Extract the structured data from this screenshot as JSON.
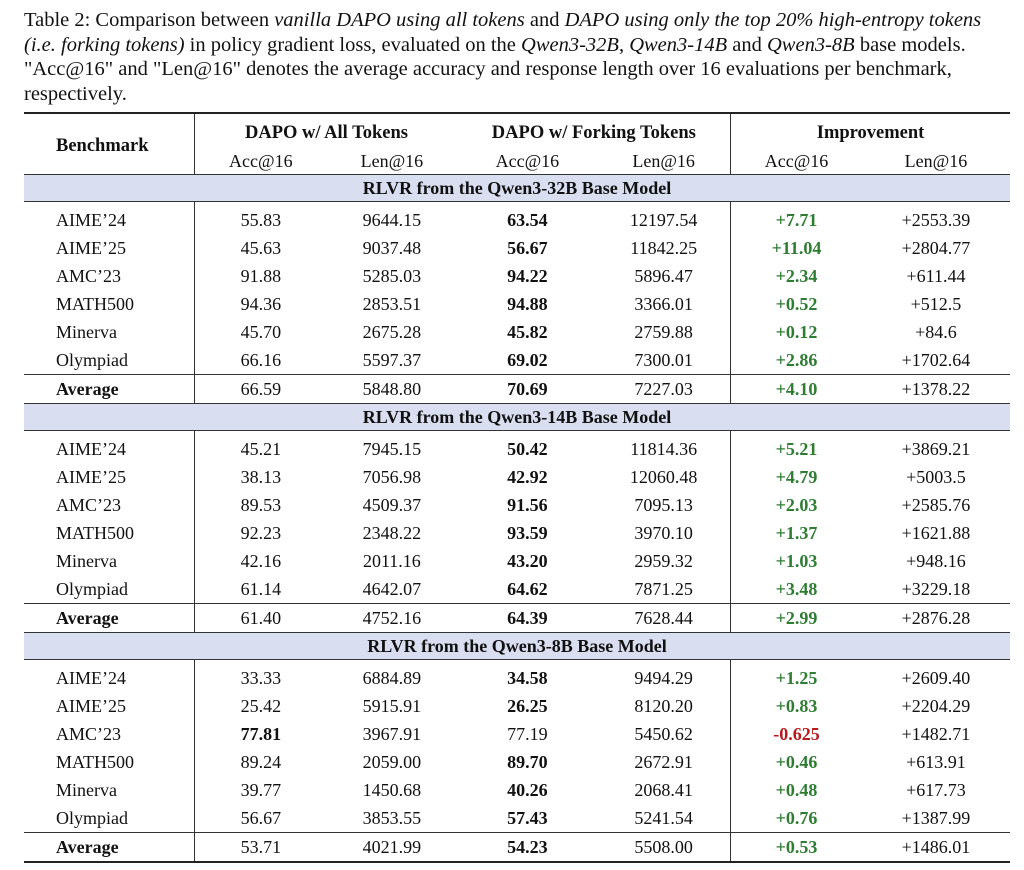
{
  "caption": {
    "p1": "Table 2: Comparison between ",
    "i1": "vanilla DAPO using all tokens",
    "p2": " and ",
    "i2": "DAPO using only the top 20% high-entropy tokens (i.e. forking tokens)",
    "p3": " in policy gradient loss, evaluated on the ",
    "i3": "Qwen3-32B",
    "p4": ", ",
    "i4": "Qwen3-14B",
    "p5": " and ",
    "i5": "Qwen3-8B",
    "p6": " base models. \"Acc@16\" and \"Len@16\" denotes the average accuracy and response length over 16 evaluations per benchmark, respectively."
  },
  "header": {
    "benchmark": "Benchmark",
    "group_all": "DAPO w/ All Tokens",
    "group_fork": "DAPO w/ Forking Tokens",
    "group_imp": "Improvement",
    "acc": "Acc@16",
    "len": "Len@16"
  },
  "sections": [
    {
      "title": "RLVR from the Qwen3-32B Base Model",
      "rows": [
        {
          "name": "AIME’24",
          "all_acc": "55.83",
          "all_len": "9644.15",
          "fork_acc": "63.54",
          "fork_len": "12197.54",
          "imp_acc": "+7.71",
          "imp_len": "+2553.39"
        },
        {
          "name": "AIME’25",
          "all_acc": "45.63",
          "all_len": "9037.48",
          "fork_acc": "56.67",
          "fork_len": "11842.25",
          "imp_acc": "+11.04",
          "imp_len": "+2804.77"
        },
        {
          "name": "AMC’23",
          "all_acc": "91.88",
          "all_len": "5285.03",
          "fork_acc": "94.22",
          "fork_len": "5896.47",
          "imp_acc": "+2.34",
          "imp_len": "+611.44"
        },
        {
          "name": "MATH500",
          "all_acc": "94.36",
          "all_len": "2853.51",
          "fork_acc": "94.88",
          "fork_len": "3366.01",
          "imp_acc": "+0.52",
          "imp_len": "+512.5"
        },
        {
          "name": "Minerva",
          "all_acc": "45.70",
          "all_len": "2675.28",
          "fork_acc": "45.82",
          "fork_len": "2759.88",
          "imp_acc": "+0.12",
          "imp_len": "+84.6"
        },
        {
          "name": "Olympiad",
          "all_acc": "66.16",
          "all_len": "5597.37",
          "fork_acc": "69.02",
          "fork_len": "7300.01",
          "imp_acc": "+2.86",
          "imp_len": "+1702.64"
        }
      ],
      "average": {
        "name": "Average",
        "all_acc": "66.59",
        "all_len": "5848.80",
        "fork_acc": "70.69",
        "fork_len": "7227.03",
        "imp_acc": "+4.10",
        "imp_len": "+1378.22"
      }
    },
    {
      "title": "RLVR from the Qwen3-14B Base Model",
      "rows": [
        {
          "name": "AIME’24",
          "all_acc": "45.21",
          "all_len": "7945.15",
          "fork_acc": "50.42",
          "fork_len": "11814.36",
          "imp_acc": "+5.21",
          "imp_len": "+3869.21"
        },
        {
          "name": "AIME’25",
          "all_acc": "38.13",
          "all_len": "7056.98",
          "fork_acc": "42.92",
          "fork_len": "12060.48",
          "imp_acc": "+4.79",
          "imp_len": "+5003.5"
        },
        {
          "name": "AMC’23",
          "all_acc": "89.53",
          "all_len": "4509.37",
          "fork_acc": "91.56",
          "fork_len": "7095.13",
          "imp_acc": "+2.03",
          "imp_len": "+2585.76"
        },
        {
          "name": "MATH500",
          "all_acc": "92.23",
          "all_len": "2348.22",
          "fork_acc": "93.59",
          "fork_len": "3970.10",
          "imp_acc": "+1.37",
          "imp_len": "+1621.88"
        },
        {
          "name": "Minerva",
          "all_acc": "42.16",
          "all_len": "2011.16",
          "fork_acc": "43.20",
          "fork_len": "2959.32",
          "imp_acc": "+1.03",
          "imp_len": "+948.16"
        },
        {
          "name": "Olympiad",
          "all_acc": "61.14",
          "all_len": "4642.07",
          "fork_acc": "64.62",
          "fork_len": "7871.25",
          "imp_acc": "+3.48",
          "imp_len": "+3229.18"
        }
      ],
      "average": {
        "name": "Average",
        "all_acc": "61.40",
        "all_len": "4752.16",
        "fork_acc": "64.39",
        "fork_len": "7628.44",
        "imp_acc": "+2.99",
        "imp_len": "+2876.28"
      }
    },
    {
      "title": "RLVR from the Qwen3-8B Base Model",
      "rows": [
        {
          "name": "AIME’24",
          "all_acc": "33.33",
          "all_len": "6884.89",
          "fork_acc": "34.58",
          "fork_len": "9494.29",
          "imp_acc": "+1.25",
          "imp_len": "+2609.40"
        },
        {
          "name": "AIME’25",
          "all_acc": "25.42",
          "all_len": "5915.91",
          "fork_acc": "26.25",
          "fork_len": "8120.20",
          "imp_acc": "+0.83",
          "imp_len": "+2204.29"
        },
        {
          "name": "AMC’23",
          "all_acc": "77.81",
          "all_len": "3967.91",
          "fork_acc": "77.19",
          "fork_len": "5450.62",
          "imp_acc": "-0.625",
          "imp_len": "+1482.71",
          "bold_all": true
        },
        {
          "name": "MATH500",
          "all_acc": "89.24",
          "all_len": "2059.00",
          "fork_acc": "89.70",
          "fork_len": "2672.91",
          "imp_acc": "+0.46",
          "imp_len": "+613.91"
        },
        {
          "name": "Minerva",
          "all_acc": "39.77",
          "all_len": "1450.68",
          "fork_acc": "40.26",
          "fork_len": "2068.41",
          "imp_acc": "+0.48",
          "imp_len": "+617.73"
        },
        {
          "name": "Olympiad",
          "all_acc": "56.67",
          "all_len": "3853.55",
          "fork_acc": "57.43",
          "fork_len": "5241.54",
          "imp_acc": "+0.76",
          "imp_len": "+1387.99"
        }
      ],
      "average": {
        "name": "Average",
        "all_acc": "53.71",
        "all_len": "4021.99",
        "fork_acc": "54.23",
        "fork_len": "5508.00",
        "imp_acc": "+0.53",
        "imp_len": "+1486.01"
      }
    }
  ],
  "colors": {
    "positive": "#2e7d32",
    "negative": "#b71c1c",
    "section_bg": "#d9def0"
  }
}
